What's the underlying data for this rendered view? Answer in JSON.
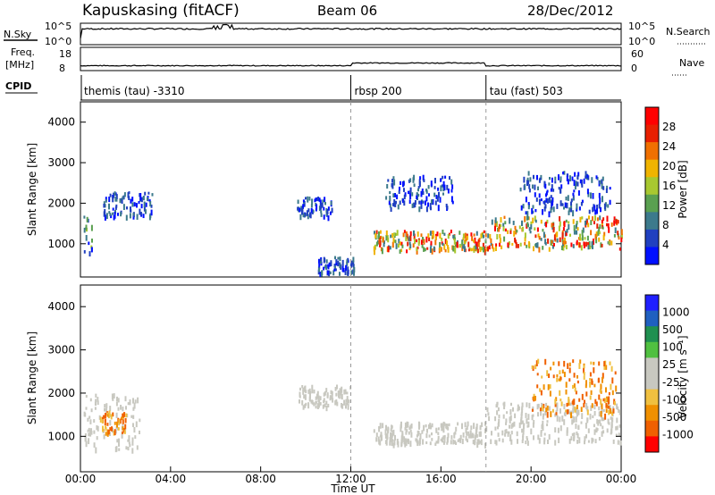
{
  "header": {
    "station": "Kapuskasing (fitACF)",
    "beam": "Beam 06",
    "date": "28/Dec/2012"
  },
  "noise_panel": {
    "left_label": "N.Sky",
    "left_ticks": [
      "10^5",
      "10^0"
    ],
    "right_label": "N.Search",
    "right_ticks": [
      "10^5",
      "10^0"
    ]
  },
  "freq_panel": {
    "left_label_1": "Freq.",
    "left_label_2": "[MHz]",
    "left_ticks": [
      "18",
      "8"
    ],
    "right_label": "Nave",
    "right_ticks": [
      "60",
      "0"
    ]
  },
  "cpid_panel": {
    "label": "CPID",
    "modes": [
      {
        "name": "themis (tau) -3310",
        "start_hour": 0
      },
      {
        "name": "rbsp 200",
        "start_hour": 12
      },
      {
        "name": "tau (fast) 503",
        "start_hour": 18
      }
    ]
  },
  "colors": {
    "power_scale": [
      "#0010ff",
      "#2040c0",
      "#3c7a8c",
      "#5aa050",
      "#a8c830",
      "#f0b400",
      "#f07000",
      "#e82000",
      "#ff0000"
    ],
    "velocity_scale": [
      "#ff0000",
      "#f06000",
      "#f09000",
      "#f0c040",
      "#c8c8c0",
      "#c8c8c0",
      "#50c040",
      "#209050",
      "#2060c0",
      "#2020ff"
    ]
  },
  "chart_data": [
    {
      "type": "heatmap",
      "quantity": "Power",
      "ylabel": "Slant Range [km]",
      "ylim": [
        180,
        4500
      ],
      "y_ticks": [
        "1000",
        "2000",
        "3000",
        "4000"
      ],
      "xlim_hours": [
        0,
        24
      ],
      "colorbar_label": "Power [dB]",
      "colorbar_ticks": [
        "4",
        "8",
        "12",
        "16",
        "20",
        "24",
        "28"
      ],
      "bands": [
        {
          "t0": 0.1,
          "t1": 0.5,
          "r0": 700,
          "r1": 1900,
          "level": "mid"
        },
        {
          "t0": 1.0,
          "t1": 3.2,
          "r0": 1700,
          "r1": 2300,
          "level": "low"
        },
        {
          "t0": 9.6,
          "t1": 11.2,
          "r0": 1700,
          "r1": 2200,
          "level": "low"
        },
        {
          "t0": 10.5,
          "t1": 12.2,
          "r0": 300,
          "r1": 700,
          "level": "low"
        },
        {
          "t0": 13.0,
          "t1": 18.0,
          "r0": 850,
          "r1": 1350,
          "level": "high"
        },
        {
          "t0": 18.0,
          "t1": 24.0,
          "r0": 900,
          "r1": 1700,
          "level": "high"
        },
        {
          "t0": 19.5,
          "t1": 23.5,
          "r0": 1800,
          "r1": 2800,
          "level": "low"
        },
        {
          "t0": 13.5,
          "t1": 16.5,
          "r0": 1900,
          "r1": 2700,
          "level": "low"
        }
      ]
    },
    {
      "type": "heatmap",
      "quantity": "Velocity",
      "ylabel": "Slant Range [km]",
      "ylim": [
        180,
        4500
      ],
      "y_ticks": [
        "1000",
        "2000",
        "3000",
        "4000"
      ],
      "xlim_hours": [
        0,
        24
      ],
      "xlabel": "Time UT",
      "x_ticks": [
        "00:00",
        "04:00",
        "08:00",
        "12:00",
        "16:00",
        "20:00",
        "00:00"
      ],
      "colorbar_label": "Velocity [m s⁻¹]",
      "colorbar_ticks": [
        "1000",
        "500",
        "100",
        "25",
        "-25",
        "-100",
        "-500",
        "-1000"
      ],
      "bands": [
        {
          "t0": 0.1,
          "t1": 2.6,
          "r0": 700,
          "r1": 2000,
          "level": "neutral"
        },
        {
          "t0": 0.8,
          "t1": 2.0,
          "r0": 1100,
          "r1": 1600,
          "level": "away"
        },
        {
          "t0": 9.6,
          "t1": 12.0,
          "r0": 1700,
          "r1": 2200,
          "level": "neutral"
        },
        {
          "t0": 13.0,
          "t1": 18.0,
          "r0": 850,
          "r1": 1350,
          "level": "neutral"
        },
        {
          "t0": 18.0,
          "t1": 24.0,
          "r0": 900,
          "r1": 1800,
          "level": "neutral"
        },
        {
          "t0": 20.0,
          "t1": 23.8,
          "r0": 1500,
          "r1": 2800,
          "level": "away"
        }
      ]
    }
  ]
}
